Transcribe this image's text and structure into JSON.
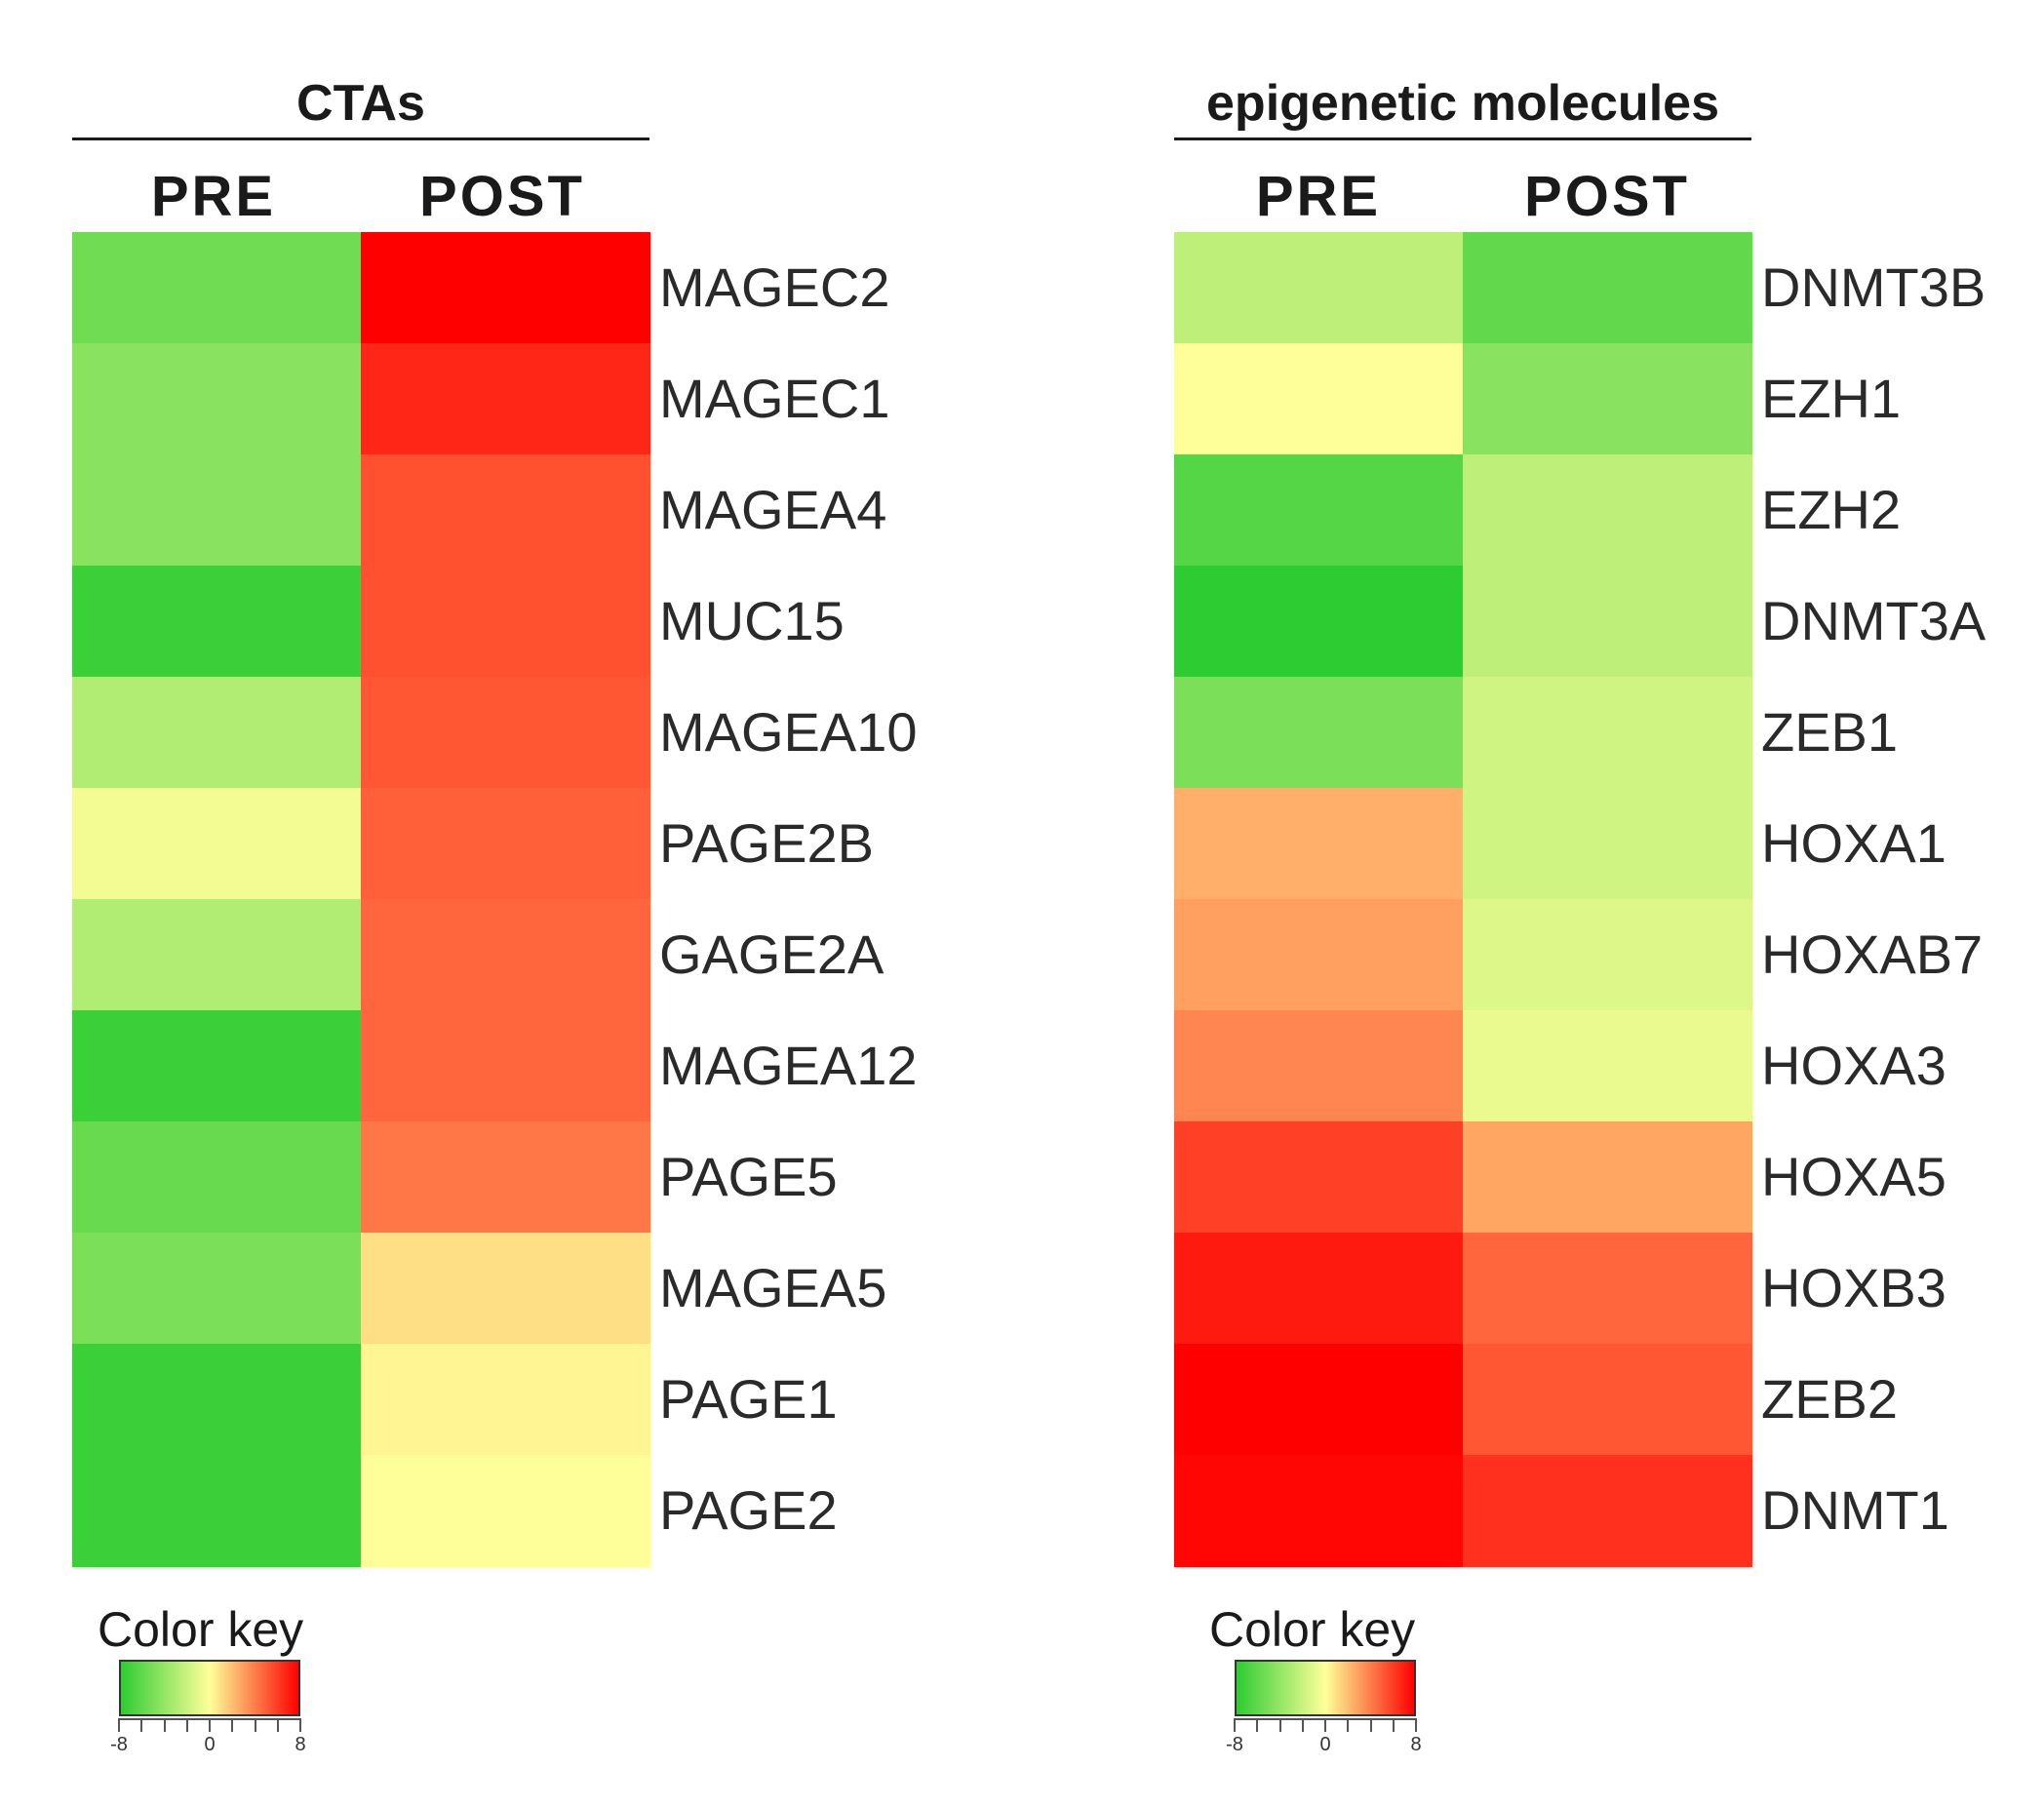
{
  "chart_data": [
    {
      "type": "heatmap",
      "title": "CTAs",
      "columns": [
        "PRE",
        "POST"
      ],
      "rows": [
        "MAGEC2",
        "MAGEC1",
        "MAGEA4",
        "MUC15",
        "MAGEA10",
        "PAGE2B",
        "GAGE2A",
        "MAGEA12",
        "PAGE5",
        "MAGEA5",
        "PAGE1",
        "PAGE2"
      ],
      "values": [
        [
          -5.5,
          8.0
        ],
        [
          -4.5,
          6.8
        ],
        [
          -4.5,
          5.5
        ],
        [
          -7.5,
          5.5
        ],
        [
          -3.0,
          5.3
        ],
        [
          -0.5,
          5.0
        ],
        [
          -3.0,
          4.8
        ],
        [
          -7.5,
          4.8
        ],
        [
          -5.8,
          4.3
        ],
        [
          -5.0,
          1.0
        ],
        [
          -7.5,
          0.3
        ],
        [
          -7.5,
          0.0
        ]
      ],
      "color_key": {
        "label": "Color key",
        "range": [
          -8,
          8
        ],
        "tick_labels": [
          "-8",
          "0",
          "8"
        ],
        "colors": [
          "#2ECC33",
          "#FFFF99",
          "#FF0000"
        ]
      }
    },
    {
      "type": "heatmap",
      "title": "epigenetic molecules",
      "columns": [
        "PRE",
        "POST"
      ],
      "rows": [
        "DNMT3B",
        "EZH1",
        "EZH2",
        "DNMT3A",
        "ZEB1",
        "HOXA1",
        "HOXAB7",
        "HOXA3",
        "HOXA5",
        "HOXB3",
        "ZEB2",
        "DNMT1"
      ],
      "values": [
        [
          -2.5,
          -6.0
        ],
        [
          0.0,
          -4.5
        ],
        [
          -6.5,
          -2.5
        ],
        [
          -8.0,
          -2.5
        ],
        [
          -5.0,
          -1.8
        ],
        [
          2.5,
          -1.8
        ],
        [
          3.0,
          -1.3
        ],
        [
          3.8,
          -0.8
        ],
        [
          6.0,
          2.8
        ],
        [
          7.2,
          4.8
        ],
        [
          8.0,
          5.3
        ],
        [
          7.8,
          6.5
        ]
      ],
      "color_key": {
        "label": "Color key",
        "range": [
          -8,
          8
        ],
        "tick_labels": [
          "-8",
          "0",
          "8"
        ],
        "colors": [
          "#2ECC33",
          "#FFFF99",
          "#FF0000"
        ]
      }
    }
  ]
}
